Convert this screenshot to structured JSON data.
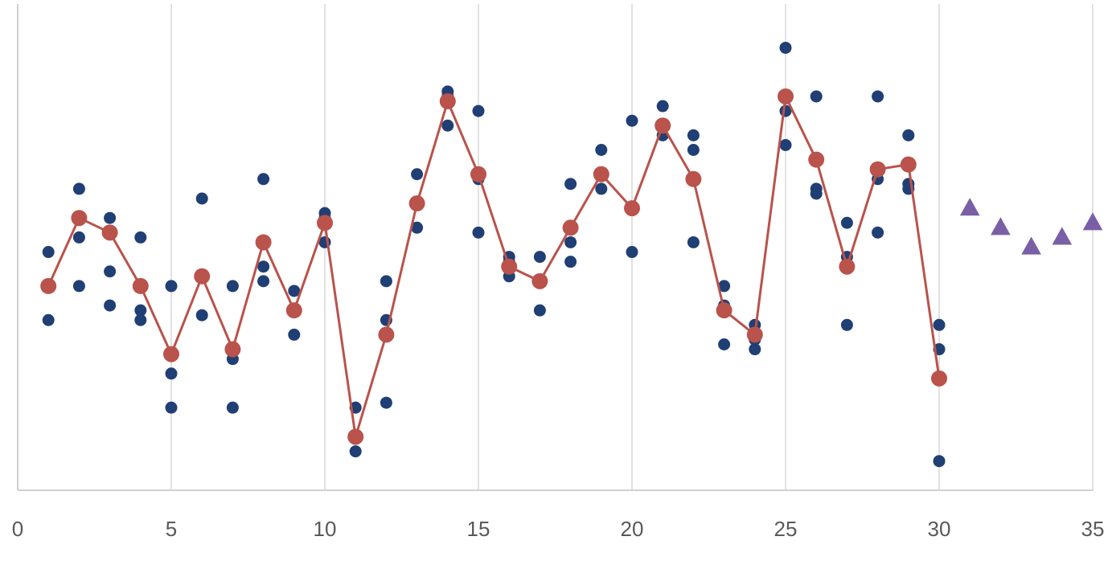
{
  "chart_data": {
    "type": "scatter",
    "title": "",
    "xlabel": "",
    "ylabel": "",
    "xlim": [
      0,
      35
    ],
    "ylim": [
      0,
      100
    ],
    "x_ticks": [
      0,
      5,
      10,
      15,
      20,
      25,
      30,
      35
    ],
    "x_tick_labels": [
      "0",
      "5",
      "10",
      "15",
      "20",
      "25",
      "30",
      "35"
    ],
    "grid": {
      "vertical": true,
      "horizontal": false
    },
    "legend": "none",
    "series": [
      {
        "kind": "scatter",
        "color": "#203f74",
        "marker": "circle",
        "points": [
          [
            1,
            49
          ],
          [
            1,
            42
          ],
          [
            1,
            35
          ],
          [
            2,
            62
          ],
          [
            2,
            52
          ],
          [
            2,
            42
          ],
          [
            3,
            56
          ],
          [
            3,
            45
          ],
          [
            3,
            38
          ],
          [
            4,
            52
          ],
          [
            4,
            37
          ],
          [
            4,
            35
          ],
          [
            5,
            42
          ],
          [
            5,
            24
          ],
          [
            5,
            17
          ],
          [
            6,
            60
          ],
          [
            6,
            36
          ],
          [
            7,
            42
          ],
          [
            7,
            27
          ],
          [
            7,
            17
          ],
          [
            8,
            64
          ],
          [
            8,
            46
          ],
          [
            8,
            43
          ],
          [
            9,
            41
          ],
          [
            9,
            32
          ],
          [
            10,
            57
          ],
          [
            10,
            56
          ],
          [
            10,
            51
          ],
          [
            11,
            17
          ],
          [
            11,
            8
          ],
          [
            12,
            43
          ],
          [
            12,
            35
          ],
          [
            12,
            18
          ],
          [
            13,
            65
          ],
          [
            13,
            59
          ],
          [
            13,
            54
          ],
          [
            14,
            82
          ],
          [
            14,
            81
          ],
          [
            14,
            75
          ],
          [
            15,
            78
          ],
          [
            15,
            64
          ],
          [
            15,
            53
          ],
          [
            16,
            48
          ],
          [
            16,
            47
          ],
          [
            16,
            44
          ],
          [
            17,
            48
          ],
          [
            17,
            43
          ],
          [
            17,
            37
          ],
          [
            18,
            63
          ],
          [
            18,
            51
          ],
          [
            18,
            47
          ],
          [
            19,
            70
          ],
          [
            19,
            62
          ],
          [
            20,
            76
          ],
          [
            20,
            49
          ],
          [
            21,
            79
          ],
          [
            21,
            73
          ],
          [
            22,
            73
          ],
          [
            22,
            70
          ],
          [
            22,
            51
          ],
          [
            23,
            42
          ],
          [
            23,
            38
          ],
          [
            23,
            30
          ],
          [
            24,
            34
          ],
          [
            24,
            31
          ],
          [
            24,
            29
          ],
          [
            25,
            91
          ],
          [
            25,
            78
          ],
          [
            25,
            71
          ],
          [
            26,
            81
          ],
          [
            26,
            62
          ],
          [
            26,
            61
          ],
          [
            27,
            55
          ],
          [
            27,
            48
          ],
          [
            27,
            34
          ],
          [
            28,
            81
          ],
          [
            28,
            64
          ],
          [
            28,
            53
          ],
          [
            29,
            73
          ],
          [
            29,
            63
          ],
          [
            29,
            62
          ],
          [
            30,
            34
          ],
          [
            30,
            29
          ],
          [
            30,
            6
          ]
        ]
      },
      {
        "kind": "line",
        "color": "#b9534b",
        "marker": "circle",
        "points": [
          [
            1,
            42
          ],
          [
            2,
            56
          ],
          [
            3,
            53
          ],
          [
            4,
            42
          ],
          [
            5,
            28
          ],
          [
            6,
            44
          ],
          [
            7,
            29
          ],
          [
            8,
            51
          ],
          [
            9,
            37
          ],
          [
            10,
            55
          ],
          [
            11,
            11
          ],
          [
            12,
            32
          ],
          [
            13,
            59
          ],
          [
            14,
            80
          ],
          [
            15,
            65
          ],
          [
            16,
            46
          ],
          [
            17,
            43
          ],
          [
            18,
            54
          ],
          [
            19,
            65
          ],
          [
            20,
            58
          ],
          [
            21,
            75
          ],
          [
            22,
            64
          ],
          [
            23,
            37
          ],
          [
            24,
            32
          ],
          [
            25,
            81
          ],
          [
            26,
            68
          ],
          [
            27,
            46
          ],
          [
            28,
            66
          ],
          [
            29,
            67
          ],
          [
            30,
            23
          ]
        ]
      },
      {
        "kind": "scatter",
        "color": "#7a5fa6",
        "marker": "triangle",
        "points": [
          [
            31,
            58
          ],
          [
            32,
            54
          ],
          [
            33,
            50
          ],
          [
            34,
            52
          ],
          [
            35,
            55
          ]
        ]
      }
    ]
  }
}
